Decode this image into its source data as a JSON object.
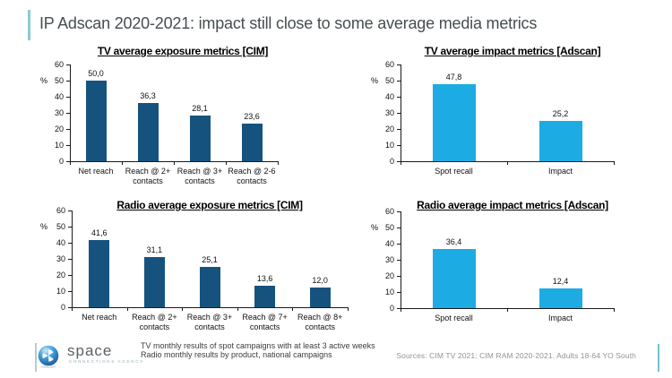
{
  "title": "IP Adscan 2020-2021: impact still close to some average media metrics",
  "colors": {
    "dark_blue_bar": "#15537E",
    "cyan_bar": "#1CACE3",
    "accent_teal": "#8CCBD2",
    "title_text": "#454E51",
    "source_text": "#8E959A"
  },
  "icons": {
    "logo": "sphere-swirl-icon"
  },
  "chart_data": [
    {
      "id": "tv-exposure",
      "type": "bar",
      "title": "TV average exposure metrics [CIM]",
      "ylabel": "%",
      "xlabel": "",
      "ylim": [
        0,
        60
      ],
      "yticks": [
        0,
        10,
        20,
        30,
        40,
        50,
        60
      ],
      "grid": "off",
      "legend": "none",
      "categories": [
        "Net reach",
        "Reach @ 2+ contacts",
        "Reach @ 3+ contacts",
        "Reach @ 2-6 contacts"
      ],
      "values": [
        50.0,
        36.3,
        28.1,
        23.6
      ],
      "value_labels": [
        "50,0",
        "36,3",
        "28,1",
        "23,6"
      ],
      "bar_color": "#15537E"
    },
    {
      "id": "tv-impact",
      "type": "bar",
      "title": "TV average impact metrics [Adscan]",
      "ylabel": "%",
      "xlabel": "",
      "ylim": [
        0,
        60
      ],
      "yticks": [
        0,
        10,
        20,
        30,
        40,
        50,
        60
      ],
      "grid": "off",
      "legend": "none",
      "categories": [
        "Spot recall",
        "Impact"
      ],
      "values": [
        47.8,
        25.2
      ],
      "value_labels": [
        "47,8",
        "25,2"
      ],
      "bar_color": "#1CACE3"
    },
    {
      "id": "radio-exposure",
      "type": "bar",
      "title": "Radio average exposure metrics [CIM]",
      "ylabel": "%",
      "xlabel": "",
      "ylim": [
        0,
        60
      ],
      "yticks": [
        0,
        10,
        20,
        30,
        40,
        50,
        60
      ],
      "grid": "off",
      "legend": "none",
      "categories": [
        "Net reach",
        "Reach @ 2+ contacts",
        "Reach @ 3+ contacts",
        "Reach @ 7+ contacts",
        "Reach @ 8+ contacts"
      ],
      "values": [
        41.6,
        31.1,
        25.1,
        13.6,
        12.0
      ],
      "value_labels": [
        "41,6",
        "31,1",
        "25,1",
        "13,6",
        "12,0"
      ],
      "bar_color": "#15537E"
    },
    {
      "id": "radio-impact",
      "type": "bar",
      "title": "Radio average impact metrics [Adscan]",
      "ylabel": "%",
      "xlabel": "",
      "ylim": [
        0,
        60
      ],
      "yticks": [
        0,
        10,
        20,
        30,
        40,
        50,
        60
      ],
      "grid": "off",
      "legend": "none",
      "categories": [
        "Spot recall",
        "Impact"
      ],
      "values": [
        36.4,
        12.4
      ],
      "value_labels": [
        "36,4",
        "12,4"
      ],
      "bar_color": "#1CACE3"
    }
  ],
  "footer": {
    "logo_text": "space",
    "logo_subtext": "CONNECTIONS AGENCY",
    "note_line1": "TV monthly results of spot campaigns with at least 3 active weeks",
    "note_line2": "Radio monthly results by product, national campaigns",
    "sources": "Sources: CIM TV 2021: CIM RAM 2020-2021. Adults 18-64 YO South"
  }
}
